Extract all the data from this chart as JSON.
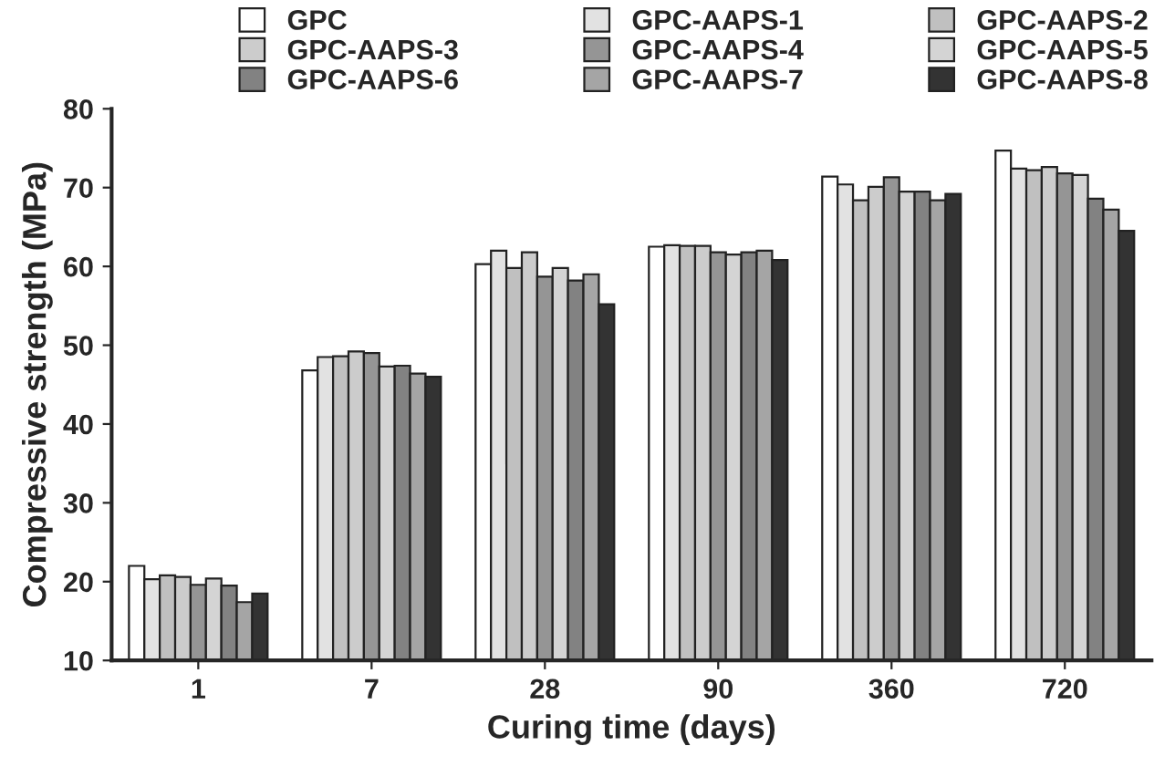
{
  "chart_data": {
    "type": "bar",
    "xlabel": "Curing time (days)",
    "ylabel": "Compressive strength (MPa)",
    "categories": [
      "1",
      "7",
      "28",
      "90",
      "360",
      "720"
    ],
    "series": [
      {
        "name": "GPC",
        "color": "#ffffff",
        "values": [
          22.0,
          46.8,
          60.3,
          62.5,
          71.4,
          74.7
        ]
      },
      {
        "name": "GPC-AAPS-1",
        "color": "#e2e2e2",
        "values": [
          20.3,
          48.5,
          62.0,
          62.7,
          70.4,
          72.4
        ]
      },
      {
        "name": "GPC-AAPS-2",
        "color": "#c0c0c0",
        "values": [
          20.8,
          48.6,
          59.8,
          62.6,
          68.4,
          72.2
        ]
      },
      {
        "name": "GPC-AAPS-3",
        "color": "#cccccc",
        "values": [
          20.6,
          49.2,
          61.8,
          62.6,
          70.1,
          72.6
        ]
      },
      {
        "name": "GPC-AAPS-4",
        "color": "#959595",
        "values": [
          19.6,
          49.0,
          58.7,
          61.8,
          71.3,
          71.8
        ]
      },
      {
        "name": "GPC-AAPS-5",
        "color": "#d4d4d4",
        "values": [
          20.4,
          47.3,
          59.8,
          61.5,
          69.5,
          71.6
        ]
      },
      {
        "name": "GPC-AAPS-6",
        "color": "#828282",
        "values": [
          19.5,
          47.4,
          58.2,
          61.8,
          69.5,
          68.6
        ]
      },
      {
        "name": "GPC-AAPS-7",
        "color": "#a5a5a5",
        "values": [
          17.4,
          46.4,
          59.0,
          62.0,
          68.4,
          67.2
        ]
      },
      {
        "name": "GPC-AAPS-8",
        "color": "#333333",
        "values": [
          18.5,
          46.0,
          55.2,
          60.8,
          69.2,
          64.5
        ]
      }
    ],
    "ylim": [
      10,
      80
    ],
    "yticks": [
      10,
      20,
      30,
      40,
      50,
      60,
      70,
      80
    ],
    "legend": "top",
    "grid": false
  }
}
